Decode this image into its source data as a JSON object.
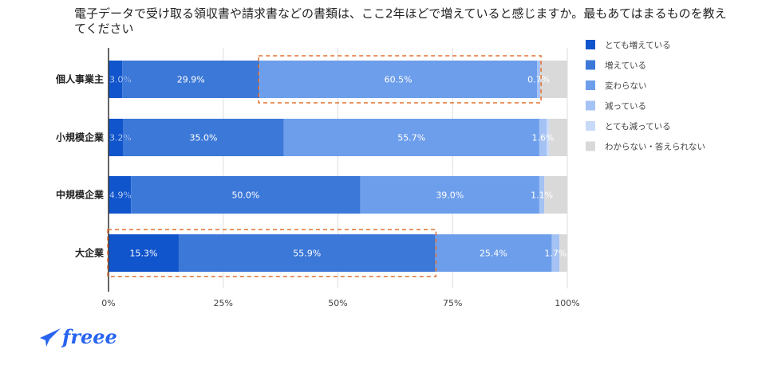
{
  "chart_data": {
    "type": "bar",
    "orientation": "horizontal",
    "stacked": true,
    "title": "電子データで受け取る領収書や請求書などの書類は、ここ2年ほどで増えていると感じますか。最もあてはまるものを教えてください",
    "categories": [
      "個人事業主",
      "小規模企業",
      "中規模企業",
      "大企業"
    ],
    "series": [
      {
        "name": "とても増えている",
        "color": "#1155cc",
        "values": [
          3.0,
          3.2,
          4.9,
          15.3
        ],
        "labels": [
          "3.0%",
          "3.2%",
          "4.9%",
          "15.3%"
        ]
      },
      {
        "name": "増えている",
        "color": "#3c78d8",
        "values": [
          29.9,
          35.0,
          50.0,
          55.9
        ],
        "labels": [
          "29.9%",
          "35.0%",
          "50.0%",
          "55.9%"
        ]
      },
      {
        "name": "変わらない",
        "color": "#6d9eeb",
        "values": [
          60.5,
          55.7,
          39.0,
          25.4
        ],
        "labels": [
          "60.5%",
          "55.7%",
          "39.0%",
          "25.4%"
        ]
      },
      {
        "name": "減っている",
        "color": "#a4c2f4",
        "values": [
          0.7,
          1.6,
          1.1,
          1.7
        ],
        "labels": [
          "0.7%",
          "1.6%",
          "1.1%",
          "1.7%"
        ]
      },
      {
        "name": "とても減っている",
        "color": "#c9daf8",
        "values": [
          0.0,
          0.6,
          0.0,
          0.0
        ],
        "labels": [
          "",
          "",
          "",
          ""
        ]
      },
      {
        "name": "わからない・答えられない",
        "color": "#d9d9d9",
        "values": [
          5.9,
          3.9,
          5.0,
          1.7
        ],
        "labels": [
          "",
          "",
          "",
          ""
        ]
      }
    ],
    "xlim": [
      0,
      100
    ],
    "xticks": [
      "0%",
      "25%",
      "50%",
      "75%",
      "100%"
    ],
    "grid": true,
    "legend": "right",
    "highlights": [
      {
        "category": "個人事業主",
        "series": [
          "変わらない",
          "減っている"
        ]
      },
      {
        "category": "大企業",
        "series": [
          "とても増えている",
          "増えている"
        ]
      }
    ]
  },
  "brand": {
    "logo_text": "freee"
  }
}
